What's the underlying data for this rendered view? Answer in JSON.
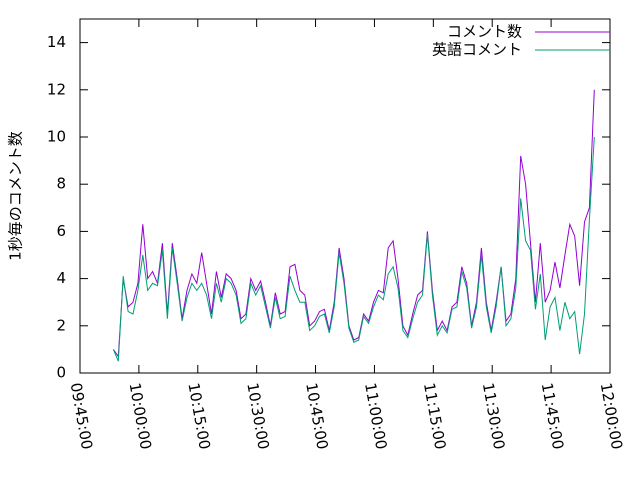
{
  "chart_data": {
    "type": "line",
    "ylabel": "1秒毎のコメント数",
    "x": [
      593.5,
      594.75,
      596,
      597.25,
      598.5,
      599.75,
      601,
      602.25,
      603.5,
      604.75,
      606,
      607.25,
      608.5,
      609.75,
      611,
      612.25,
      613.5,
      614.75,
      616,
      617.25,
      618.5,
      619.75,
      621,
      622.25,
      623.5,
      624.75,
      626,
      627.25,
      628.5,
      629.75,
      631,
      632.25,
      633.5,
      634.75,
      636,
      637.25,
      638.5,
      639.75,
      641,
      642.25,
      643.5,
      644.75,
      646,
      647.25,
      648.5,
      649.75,
      651,
      652.25,
      653.5,
      654.75,
      656,
      657.25,
      658.5,
      659.75,
      661,
      662.25,
      663.5,
      664.75,
      666,
      667.25,
      668.5,
      669.75,
      671,
      672.25,
      673.5,
      674.75,
      676,
      677.25,
      678.5,
      679.75,
      681,
      682.25,
      683.5,
      684.75,
      686,
      687.25,
      688.5,
      689.75,
      691,
      692.25,
      693.5,
      694.75,
      696,
      697.25,
      698.5,
      699.75,
      701,
      702.25,
      703.5,
      704.75,
      706,
      707.25,
      708.5,
      709.75,
      711,
      712.25,
      713.5,
      714.75,
      716
    ],
    "series": [
      {
        "name": "コメント数",
        "color": "#9400d3",
        "values": [
          1.0,
          0.7,
          4.0,
          2.8,
          3.0,
          3.8,
          6.3,
          4.0,
          4.3,
          3.8,
          5.5,
          2.5,
          5.5,
          4.0,
          2.3,
          3.5,
          4.2,
          3.8,
          5.1,
          3.8,
          2.5,
          4.3,
          3.2,
          4.2,
          4.0,
          3.5,
          2.3,
          2.5,
          4.0,
          3.5,
          3.9,
          3.0,
          2.0,
          3.4,
          2.5,
          2.6,
          4.5,
          4.6,
          3.5,
          3.3,
          2.0,
          2.2,
          2.6,
          2.7,
          1.8,
          3.0,
          5.3,
          4.0,
          2.0,
          1.4,
          1.5,
          2.5,
          2.2,
          3.0,
          3.5,
          3.4,
          5.3,
          5.6,
          4.0,
          2.0,
          1.6,
          2.5,
          3.3,
          3.5,
          6.0,
          3.5,
          1.8,
          2.2,
          1.8,
          2.8,
          3.0,
          4.5,
          3.8,
          2.0,
          3.0,
          5.3,
          3.0,
          1.8,
          3.0,
          4.5,
          2.2,
          2.5,
          4.0,
          9.2,
          8.0,
          5.5,
          3.0,
          5.5,
          3.0,
          3.5,
          4.7,
          3.6,
          5.0,
          6.3,
          5.8,
          3.7,
          6.4,
          7.0,
          12.0
        ]
      },
      {
        "name": "英語コメント",
        "color": "#009e73",
        "values": [
          1.0,
          0.5,
          4.1,
          2.6,
          2.5,
          3.5,
          5.0,
          3.5,
          3.8,
          3.7,
          5.2,
          2.3,
          5.3,
          3.8,
          2.2,
          3.2,
          3.8,
          3.5,
          3.8,
          3.3,
          2.3,
          3.8,
          3.0,
          4.0,
          3.8,
          3.3,
          2.1,
          2.3,
          3.8,
          3.3,
          3.7,
          2.8,
          1.9,
          3.2,
          2.3,
          2.4,
          4.1,
          3.5,
          3.0,
          3.0,
          1.8,
          2.0,
          2.4,
          2.5,
          1.7,
          2.8,
          5.1,
          3.8,
          1.9,
          1.3,
          1.4,
          2.4,
          2.1,
          2.8,
          3.3,
          3.1,
          4.2,
          4.5,
          3.6,
          1.8,
          1.5,
          2.3,
          3.0,
          3.3,
          5.9,
          3.3,
          1.6,
          2.0,
          1.7,
          2.7,
          2.8,
          4.3,
          3.6,
          1.9,
          2.8,
          5.0,
          2.8,
          1.7,
          2.8,
          4.5,
          2.0,
          2.3,
          3.6,
          7.4,
          5.6,
          5.2,
          2.7,
          4.2,
          1.4,
          2.8,
          3.2,
          1.8,
          3.0,
          2.3,
          2.6,
          0.8,
          2.5,
          6.5,
          10.0
        ]
      }
    ],
    "xlim": [
      585,
      720
    ],
    "xticks": [
      {
        "value": 585,
        "label": "09:45:00"
      },
      {
        "value": 600,
        "label": "10:00:00"
      },
      {
        "value": 615,
        "label": "10:15:00"
      },
      {
        "value": 630,
        "label": "10:30:00"
      },
      {
        "value": 645,
        "label": "10:45:00"
      },
      {
        "value": 660,
        "label": "11:00:00"
      },
      {
        "value": 675,
        "label": "11:15:00"
      },
      {
        "value": 690,
        "label": "11:30:00"
      },
      {
        "value": 705,
        "label": "11:45:00"
      },
      {
        "value": 720,
        "label": "12:00:00"
      }
    ],
    "ylim": [
      0,
      15
    ],
    "yticks": [
      0,
      2,
      4,
      6,
      8,
      10,
      12,
      14
    ],
    "legend": "upper right"
  }
}
